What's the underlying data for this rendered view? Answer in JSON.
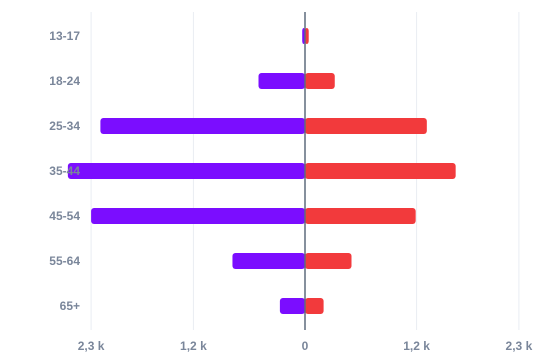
{
  "chart_data": {
    "type": "bar",
    "orientation": "horizontal",
    "layout": "diverging",
    "categories": [
      "13-17",
      "18-24",
      "25-34",
      "35-44",
      "45-54",
      "55-64",
      "65+"
    ],
    "series": [
      {
        "values": [
          -30,
          -500,
          -2200,
          -2550,
          -2300,
          -780,
          -270
        ],
        "color": "#7b0dff"
      },
      {
        "values": [
          40,
          320,
          1310,
          1620,
          1190,
          500,
          200
        ],
        "color": "#f23a3c"
      }
    ],
    "xlim": [
      -2600,
      2600
    ],
    "xticks": [
      {
        "value": -2300,
        "label": "2,3 k"
      },
      {
        "value": -1200,
        "label": "1,2 k"
      },
      {
        "value": 0,
        "label": "0"
      },
      {
        "value": 1200,
        "label": "1,2 k"
      },
      {
        "value": 2300,
        "label": "2,3 k"
      }
    ],
    "grid": true,
    "colors": {
      "grid": "#e9edf2",
      "axis": "#5f6b7d",
      "tick_text": "#7a869a"
    }
  }
}
